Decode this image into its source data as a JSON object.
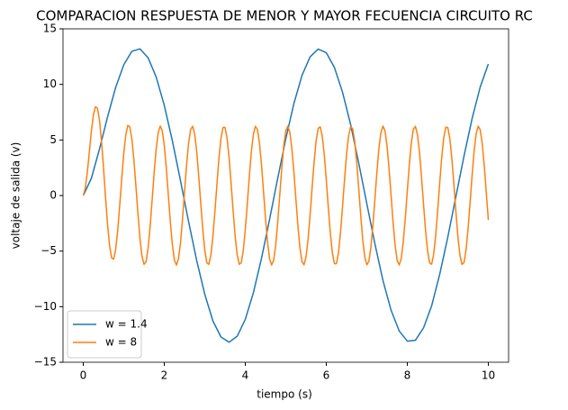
{
  "chart_data": {
    "type": "line",
    "title": "COMPARACION RESPUESTA DE MENOR Y MAYOR FECUENCIA CIRCUITO RC",
    "xlabel": "tiempo (s)",
    "ylabel": "voltaje de salida (v)",
    "xlim": [
      -0.5,
      10.5
    ],
    "ylim": [
      -15,
      15
    ],
    "xticks": [
      0,
      2,
      4,
      6,
      8,
      10
    ],
    "yticks": [
      {
        "value": -15,
        "label": "−15"
      },
      {
        "value": -10,
        "label": "−10"
      },
      {
        "value": -5,
        "label": "−5"
      },
      0,
      5,
      10,
      15
    ],
    "grid": false,
    "legend": "lower left",
    "series": [
      {
        "name": "w = 1.4",
        "color": "#1f77b4",
        "x": [
          0,
          0.2,
          0.4,
          0.6,
          0.8,
          1,
          1.2,
          1.4,
          1.6,
          1.8,
          2,
          2.2,
          2.4,
          2.6,
          2.8,
          3,
          3.2,
          3.4,
          3.6,
          3.8,
          4,
          4.2,
          4.4,
          4.6,
          4.8,
          5,
          5.2,
          5.4,
          5.6,
          5.8,
          6,
          6.2,
          6.4,
          6.6,
          6.8,
          7,
          7.2,
          7.4,
          7.6,
          7.8,
          8,
          8.2,
          8.4,
          8.6,
          8.8,
          9,
          9.2,
          9.4,
          9.6,
          9.8,
          10
        ],
        "values": [
          0,
          1.55,
          4.18,
          7.08,
          9.73,
          11.77,
          12.98,
          13.2,
          12.4,
          10.67,
          8.11,
          4.92,
          1.34,
          -2.34,
          -5.84,
          -8.89,
          -11.28,
          -12.73,
          -13.2,
          -12.66,
          -11.14,
          -8.74,
          -5.65,
          -2.14,
          1.54,
          5.11,
          8.28,
          10.81,
          12.48,
          13.18,
          12.85,
          11.52,
          9.31,
          6.39,
          2.93,
          -0.73,
          -4.35,
          -7.67,
          -10.33,
          -12.19,
          -13.1,
          -13.02,
          -11.91,
          -9.93,
          -7.08,
          -3.73,
          -0.08,
          3.57,
          6.94,
          9.77,
          11.84
        ]
      },
      {
        "name": "w = 8",
        "color": "#ff7f0e",
        "x": [
          0,
          0.05,
          0.1,
          0.15,
          0.2,
          0.25,
          0.3,
          0.35,
          0.4,
          0.45,
          0.5,
          0.55,
          0.6,
          0.65,
          0.7,
          0.75,
          0.8,
          0.85,
          0.9,
          0.95,
          1,
          1.05,
          1.1,
          1.15,
          1.2,
          1.25,
          1.3,
          1.35,
          1.4,
          1.45,
          1.5,
          1.55,
          1.6,
          1.65,
          1.7,
          1.75,
          1.8,
          1.85,
          1.9,
          1.95,
          2,
          2.05,
          2.1,
          2.15,
          2.2,
          2.25,
          2.3,
          2.35,
          2.4,
          2.45,
          2.5,
          2.55,
          2.6,
          2.65,
          2.7,
          2.75,
          2.8,
          2.85,
          2.9,
          2.95,
          3,
          3.05,
          3.1,
          3.15,
          3.2,
          3.25,
          3.3,
          3.35,
          3.4,
          3.45,
          3.5,
          3.55,
          3.6,
          3.65,
          3.7,
          3.75,
          3.8,
          3.85,
          3.9,
          3.95,
          4,
          4.05,
          4.1,
          4.15,
          4.2,
          4.25,
          4.3,
          4.35,
          4.4,
          4.45,
          4.5,
          4.55,
          4.6,
          4.65,
          4.7,
          4.75,
          4.8,
          4.85,
          4.9,
          4.95,
          5,
          5.05,
          5.1,
          5.15,
          5.2,
          5.25,
          5.3,
          5.35,
          5.4,
          5.45,
          5.5,
          5.55,
          5.6,
          5.65,
          5.7,
          5.75,
          5.8,
          5.85,
          5.9,
          5.95,
          6,
          6.05,
          6.1,
          6.15,
          6.2,
          6.25,
          6.3,
          6.35,
          6.4,
          6.45,
          6.5,
          6.55,
          6.6,
          6.65,
          6.7,
          6.75,
          6.8,
          6.85,
          6.9,
          6.95,
          7,
          7.05,
          7.1,
          7.15,
          7.2,
          7.25,
          7.3,
          7.35,
          7.4,
          7.45,
          7.5,
          7.55,
          7.6,
          7.65,
          7.7,
          7.75,
          7.8,
          7.85,
          7.9,
          7.95,
          8,
          8.05,
          8.1,
          8.15,
          8.2,
          8.25,
          8.3,
          8.35,
          8.4,
          8.45,
          8.5,
          8.55,
          8.6,
          8.65,
          8.7,
          8.75,
          8.8,
          8.85,
          8.9,
          8.95,
          9,
          9.05,
          9.1,
          9.15,
          9.2,
          9.25,
          9.3,
          9.35,
          9.4,
          9.45,
          9.5,
          9.55,
          9.6,
          9.65,
          9.7,
          9.75,
          9.8,
          9.85,
          9.9,
          9.95,
          10
        ],
        "values": [
          0,
          0.65,
          2.09,
          3.93,
          5.79,
          7.25,
          7.99,
          7.86,
          6.8,
          4.92,
          2.49,
          -0.16,
          -2.61,
          -4.53,
          -5.61,
          -5.72,
          -4.85,
          -3.14,
          -0.89,
          1.55,
          3.8,
          5.47,
          6.31,
          6.17,
          5.08,
          3.21,
          0.84,
          -1.64,
          -3.87,
          -5.46,
          -6.19,
          -5.96,
          -4.76,
          -2.81,
          -0.41,
          2.05,
          4.19,
          5.66,
          6.25,
          5.84,
          4.52,
          2.48,
          0.05,
          -2.39,
          -4.45,
          -5.81,
          -6.25,
          -5.7,
          -4.26,
          -2.14,
          0.32,
          2.72,
          4.7,
          5.93,
          6.23,
          5.54,
          3.99,
          1.78,
          -0.68,
          -3.04,
          -4.93,
          -6.04,
          -6.19,
          -5.37,
          -3.7,
          -1.44,
          1.04,
          3.36,
          5.15,
          6.12,
          6.13,
          5.17,
          3.39,
          1.08,
          -1.39,
          -3.66,
          -5.34,
          -6.18,
          -6.05,
          -4.96,
          -3.08,
          -0.72,
          1.75,
          3.95,
          5.52,
          6.23,
          5.94,
          4.72,
          2.76,
          0.36,
          -2.1,
          -4.22,
          -5.69,
          -6.25,
          -5.83,
          -4.48,
          -2.43,
          0.01,
          2.44,
          4.49,
          5.83,
          6.25,
          5.68,
          4.22,
          2.09,
          -0.37,
          -2.77,
          -4.73,
          -5.95,
          -6.23,
          -5.52,
          -3.94,
          -1.74,
          0.73,
          3.09,
          4.97,
          6.05,
          6.18,
          5.34,
          3.65,
          1.38,
          -1.1,
          -3.4,
          -5.17,
          -6.13,
          -6.12,
          -5.14,
          -3.35,
          -1.03,
          1.45,
          3.71,
          5.37,
          6.19,
          6.03,
          4.92,
          3.03,
          0.67,
          -1.8,
          -3.99,
          -5.55,
          -6.23,
          -5.93,
          -4.69,
          -2.71,
          -0.3,
          2.15,
          4.27,
          5.71,
          6.25,
          5.8,
          4.44,
          2.38,
          -0.06,
          -2.49,
          -4.53,
          -5.85,
          -6.25,
          -5.66,
          -4.18,
          -2.04,
          0.43,
          2.82,
          4.77,
          5.97,
          6.22,
          5.49,
          3.9,
          1.68,
          -0.79,
          -3.14,
          -4.99,
          -6.06,
          -6.18,
          -5.31,
          -3.61,
          -1.33,
          1.15,
          3.45,
          5.21,
          6.14,
          6.11,
          5.11,
          3.3,
          0.98,
          -1.5,
          -3.74,
          -5.4,
          -6.2,
          -6.02,
          -4.89,
          -2.99,
          -0.61,
          1.86,
          4.04,
          5.58,
          6.24,
          5.91,
          4.66,
          2.67,
          0.25,
          -2.2
        ]
      }
    ]
  }
}
